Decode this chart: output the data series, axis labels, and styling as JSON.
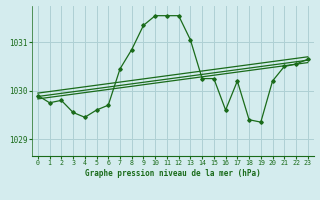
{
  "title": "Graphe pression niveau de la mer (hPa)",
  "background_color": "#d4ecee",
  "grid_color": "#aed0d4",
  "line_color": "#1a6b1a",
  "xlim": [
    -0.5,
    23.5
  ],
  "ylim": [
    1028.65,
    1031.75
  ],
  "yticks": [
    1029,
    1030,
    1031
  ],
  "xticks": [
    0,
    1,
    2,
    3,
    4,
    5,
    6,
    7,
    8,
    9,
    10,
    11,
    12,
    13,
    14,
    15,
    16,
    17,
    18,
    19,
    20,
    21,
    22,
    23
  ],
  "main_series": [
    1029.9,
    1029.75,
    1029.8,
    1029.55,
    1029.45,
    1029.6,
    1029.7,
    1030.45,
    1030.85,
    1031.35,
    1031.55,
    1031.55,
    1031.55,
    1031.05,
    1030.25,
    1030.25,
    1029.6,
    1030.2,
    1029.4,
    1029.35,
    1030.2,
    1030.5,
    1030.55,
    1030.65
  ],
  "trend_lines": [
    [
      1029.83,
      1030.58
    ],
    [
      1029.88,
      1030.63
    ],
    [
      1029.95,
      1030.7
    ]
  ]
}
